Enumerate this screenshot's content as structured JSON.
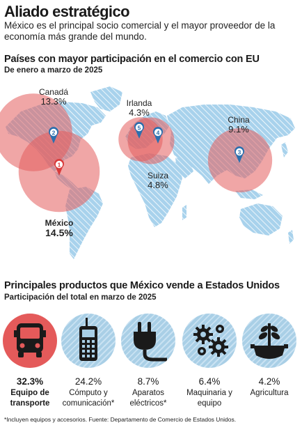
{
  "header": {
    "title": "Aliado estratégico",
    "subtitle": "México es el principal socio comercial y el mayor proveedor de la economía más grande del mundo."
  },
  "colors": {
    "land": "#9fcbe6",
    "bubble": "#e35d5d",
    "pin": "#2b6fae",
    "lead": "#e45a5a",
    "other": "#a9cfe6"
  },
  "chart_data": [
    {
      "type": "map-bubble",
      "title": "Países con mayor participación en el comercio con EU",
      "subtitle": "De enero a marzo de 2025",
      "categories": [
        "México",
        "Canadá",
        "China",
        "Irlanda",
        "Suiza"
      ],
      "values": [
        14.5,
        13.3,
        9.1,
        4.3,
        4.8
      ],
      "unit": "%",
      "ranks": [
        1,
        2,
        3,
        5,
        4
      ],
      "labels": {
        "mexico": {
          "name": "México",
          "pct": "14.5%"
        },
        "canada": {
          "name": "Canadá",
          "pct": "13.3%"
        },
        "irlanda": {
          "name": "Irlanda",
          "pct": "4.3%"
        },
        "china": {
          "name": "China",
          "pct": "9.1%"
        },
        "suiza": {
          "name": "Suiza",
          "pct": "4.8%"
        }
      }
    },
    {
      "type": "bar",
      "title": "Principales productos que México vende a Estados Unidos",
      "subtitle": "Participación del total en marzo de 2025",
      "categories": [
        "Equipo de transporte",
        "Cómputo y comunicación*",
        "Aparatos eléctricos*",
        "Maquinaria y equipo",
        "Agricultura"
      ],
      "values": [
        32.3,
        24.2,
        8.7,
        6.4,
        4.2
      ],
      "unit": "%",
      "items": [
        {
          "value": "32.3%",
          "label": "Equipo de transporte",
          "icon": "bus-icon"
        },
        {
          "value": "24.2%",
          "label": "Cómputo y comunicación*",
          "icon": "radio-device-icon"
        },
        {
          "value": "8.7%",
          "label": "Aparatos eléctricos*",
          "icon": "plug-icon"
        },
        {
          "value": "6.4%",
          "label": "Maquinaria y equipo",
          "icon": "gears-icon"
        },
        {
          "value": "4.2%",
          "label": "Agricultura",
          "icon": "plant-gear-icon"
        }
      ]
    }
  ],
  "footnote": "*Incluyen equipos y accesorios. Fuente: Departamento de Comercio de Estados Unidos."
}
